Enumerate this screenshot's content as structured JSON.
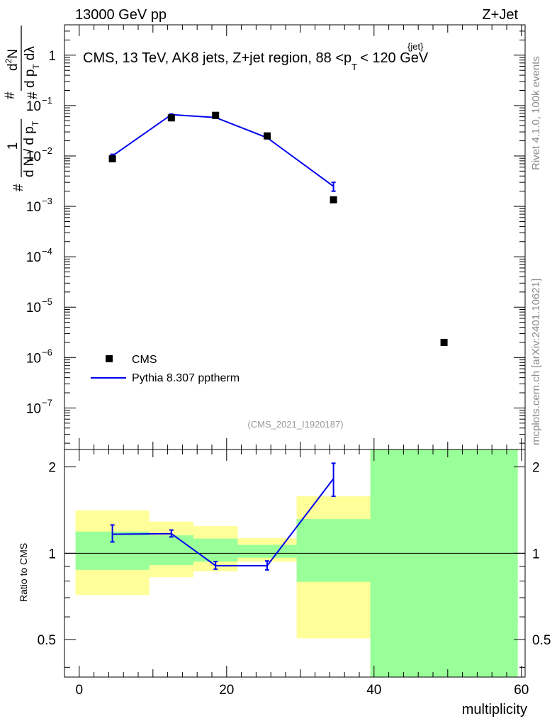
{
  "header": {
    "beam": "13000 GeV pp",
    "process": "Z+Jet"
  },
  "side": {
    "rivet": "Rivet 4.1.0,  100k events",
    "mcplots": "mcplots.cern.ch [arXiv:2401.10621]"
  },
  "chart_data": [
    {
      "type": "scatter",
      "name": "main",
      "title": "CMS, 13 TeV, AK8 jets, Z+jet region, 88 <p_T^{jet}< 120 GeV",
      "title_parts": {
        "pre": "CMS, 13 TeV, AK8 jets, Z+jet region, 88 <p",
        "sub": "T",
        "sup": "{jet}",
        "post": "< 120 GeV"
      },
      "ylabel_parts": {
        "hash": "#",
        "one": "1",
        "dN": "d N / d p",
        "T": "T",
        "hash2": "#",
        "d2N": "d",
        "two": "2",
        "N": "N",
        "dpT": "d p",
        "dlam": "dλ"
      },
      "yscale": "log",
      "ylim": [
        1.5e-08,
        4
      ],
      "xlim": [
        -2,
        60.5
      ],
      "y_tick_labels": [
        {
          "value": 1,
          "base": "1",
          "exp": ""
        },
        {
          "value": 0.1,
          "base": "10",
          "exp": "−1"
        },
        {
          "value": 0.01,
          "base": "10",
          "exp": "−2"
        },
        {
          "value": 0.001,
          "base": "10",
          "exp": "−3"
        },
        {
          "value": 0.0001,
          "base": "10",
          "exp": "−4"
        },
        {
          "value": 1e-05,
          "base": "10",
          "exp": "−5"
        },
        {
          "value": 1e-06,
          "base": "10",
          "exp": "−6"
        },
        {
          "value": 1e-07,
          "base": "10",
          "exp": "−7"
        }
      ],
      "series": [
        {
          "name": "CMS",
          "style": "marker",
          "color": "#000000",
          "points": [
            {
              "x": 4.5,
              "y": 0.0088
            },
            {
              "x": 12.5,
              "y": 0.057
            },
            {
              "x": 18.5,
              "y": 0.064
            },
            {
              "x": 25.5,
              "y": 0.025
            },
            {
              "x": 34.5,
              "y": 0.00135
            },
            {
              "x": 49.5,
              "y": 2e-06
            }
          ]
        },
        {
          "name": "Pythia 8.307 pptherm",
          "style": "line",
          "color": "#0000ee",
          "points": [
            {
              "x": 4.5,
              "y": 0.01,
              "err": 0.0008
            },
            {
              "x": 12.5,
              "y": 0.066,
              "err": 0.002
            },
            {
              "x": 18.5,
              "y": 0.058,
              "err": 0.002
            },
            {
              "x": 25.5,
              "y": 0.023,
              "err": 0.001
            },
            {
              "x": 34.5,
              "y": 0.0025,
              "err": 0.0005
            }
          ]
        }
      ],
      "legend": {
        "position": "lower-left",
        "entries": [
          "CMS",
          "Pythia 8.307 pptherm"
        ]
      },
      "watermark": "(CMS_2021_I1920187)"
    },
    {
      "type": "line",
      "name": "ratio",
      "ylabel": "Ratio to CMS",
      "xlabel": "multiplicity",
      "yscale": "log",
      "ylim": [
        0.37,
        2.3
      ],
      "xlim": [
        -2,
        60.5
      ],
      "x_ticks": [
        0,
        20,
        40,
        60
      ],
      "y_ticks": [
        {
          "value": 2,
          "label": "2"
        },
        {
          "value": 1,
          "label": "1"
        },
        {
          "value": 0.5,
          "label": "0.5"
        }
      ],
      "reference_line": 1,
      "bands": [
        {
          "x0": -0.5,
          "x1": 9.5,
          "yellow": [
            0.715,
            1.41
          ],
          "green": [
            0.875,
            1.19
          ]
        },
        {
          "x0": 9.5,
          "x1": 15.5,
          "yellow": [
            0.825,
            1.29
          ],
          "green": [
            0.91,
            1.155
          ]
        },
        {
          "x0": 15.5,
          "x1": 21.5,
          "yellow": [
            0.865,
            1.245
          ],
          "green": [
            0.935,
            1.125
          ]
        },
        {
          "x0": 21.5,
          "x1": 29.5,
          "yellow": [
            0.935,
            1.13
          ],
          "green": [
            0.965,
            1.07
          ]
        },
        {
          "x0": 29.5,
          "x1": 39.5,
          "yellow": [
            0.505,
            1.58
          ],
          "green": [
            0.795,
            1.315
          ]
        },
        {
          "x0": 39.5,
          "x1": 59.5,
          "yellow": [
            0.37,
            2.3
          ],
          "green": [
            0.37,
            2.3
          ]
        }
      ],
      "series": [
        {
          "name": "Pythia 8.307 pptherm",
          "color": "#0000ee",
          "points": [
            {
              "x": 4.5,
              "y": 1.165,
              "lo": 1.095,
              "hi": 1.255
            },
            {
              "x": 12.5,
              "y": 1.17,
              "lo": 1.14,
              "hi": 1.205
            },
            {
              "x": 18.5,
              "y": 0.905,
              "lo": 0.88,
              "hi": 0.935
            },
            {
              "x": 25.5,
              "y": 0.905,
              "lo": 0.875,
              "hi": 0.94
            },
            {
              "x": 34.5,
              "y": 1.82,
              "lo": 1.58,
              "hi": 2.06
            }
          ]
        }
      ]
    }
  ]
}
